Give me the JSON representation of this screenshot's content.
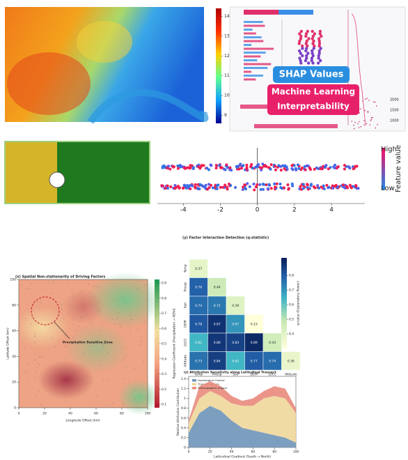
{
  "temperature_map": {
    "colorbar_ticks": [
      14,
      13,
      12,
      11,
      10,
      9
    ],
    "clim": [
      8.6,
      14.4
    ]
  },
  "shap_collage": {
    "badge": "SHAP Values",
    "banner_lines": [
      "Machine Learning",
      "Interpretability"
    ],
    "side_ticks": [
      2000,
      1500,
      1000
    ]
  },
  "beeswarm": {
    "xticks": [
      -4,
      -2,
      0,
      2,
      4
    ],
    "xlim": [
      -5.4,
      5.8
    ],
    "legend_high": "High",
    "legend_low": "Low",
    "legend_title": "Feature value"
  },
  "interaction": {
    "title": "(y) Factor Interaction Detection (q-statistic)",
    "factors": [
      "Temp",
      "Precip",
      "Soil",
      "DEM",
      "LUCC",
      "Altitude"
    ],
    "values": [
      [
        0.37
      ],
      [
        0.76,
        0.44
      ],
      [
        0.74,
        0.72,
        0.39
      ],
      [
        0.78,
        0.87,
        0.67,
        0.23
      ],
      [
        0.61,
        0.86,
        0.83,
        0.89,
        0.43
      ],
      [
        0.73,
        0.84,
        0.61,
        0.77,
        0.74,
        0.36
      ]
    ],
    "colorbar_label": "q-value (Explanatory Power)",
    "colorbar_ticks": [
      0.8,
      0.7,
      0.6,
      0.5,
      0.4
    ],
    "clim": [
      0.3,
      0.92
    ]
  },
  "nonstationarity": {
    "title": "(x) Spatial Non-stationarity of Driving Factors",
    "xlabel": "Longitude Offset (km)",
    "ylabel": "Latitude Offset (km)",
    "xticks": [
      0,
      20,
      40,
      60,
      80,
      100
    ],
    "yticks": [
      0,
      20,
      40,
      60,
      80,
      100
    ],
    "xlim": [
      0,
      100
    ],
    "ylim": [
      0,
      100
    ],
    "annotation": "Precipitation Sensitive Zone",
    "colorbar_label": "Regression Coefficient (Precipitation → NDVI)",
    "colorbar_ticks": [
      0.9,
      0.8,
      0.7,
      0.6,
      0.5,
      0.4,
      0.3,
      0.2,
      0.1
    ],
    "clim": [
      0.1,
      0.9
    ]
  },
  "transect": {
    "title": "(z) Attribution Sensitivity along Latitudinal Transect",
    "xlabel": "Latitudinal Gradient (South → North)",
    "ylabel": "Relative Attribution Contribution",
    "x": [
      0,
      10,
      20,
      30,
      40,
      50,
      60,
      70,
      80,
      90,
      100
    ],
    "series": [
      {
        "name": "Hydrological Control",
        "color": "#6f95b8",
        "values": [
          0.3,
          0.7,
          0.85,
          0.75,
          0.55,
          0.4,
          0.35,
          0.3,
          0.25,
          0.2,
          0.1
        ]
      },
      {
        "name": "Thermal Control",
        "color": "#efd79a",
        "values": [
          0.2,
          0.3,
          0.3,
          0.3,
          0.35,
          0.45,
          0.5,
          0.7,
          0.8,
          0.8,
          0.6
        ]
      },
      {
        "name": "Anthropogenic Impact",
        "color": "#e98a7c",
        "values": [
          0.05,
          0.25,
          0.2,
          0.2,
          0.15,
          0.1,
          0.15,
          0.15,
          0.2,
          0.2,
          0.1
        ]
      }
    ],
    "xticks": [
      0,
      20,
      40,
      60,
      80,
      100
    ],
    "yticks": [
      0.0,
      0.2,
      0.4,
      0.6,
      0.8,
      1.0,
      1.2,
      1.4
    ],
    "xlim": [
      0,
      100
    ],
    "ylim": [
      0,
      1.45
    ]
  }
}
